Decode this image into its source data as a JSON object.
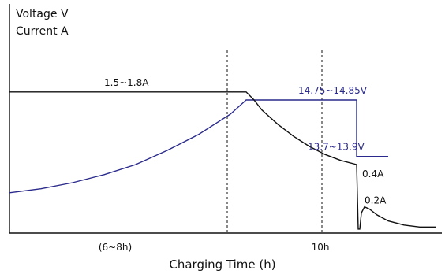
{
  "chart_data": {
    "type": "line",
    "title": "",
    "ylabel": [
      "Voltage  V",
      "Current  A"
    ],
    "xlabel": "Charging Time (h)",
    "x_ticks": [
      "(6~8h)",
      "10h"
    ],
    "grid": false,
    "legend": "none",
    "series": [
      {
        "name": "Voltage",
        "color": "#2a2a8c",
        "points": [
          [
            0,
            0.2
          ],
          [
            20,
            0.22
          ],
          [
            40,
            0.25
          ],
          [
            60,
            0.29
          ],
          [
            80,
            0.34
          ],
          [
            100,
            0.41
          ],
          [
            120,
            0.49
          ],
          [
            140,
            0.59
          ],
          [
            150,
            0.66
          ],
          [
            175,
            0.66
          ],
          [
            200,
            0.66
          ],
          [
            220,
            0.66
          ],
          [
            220,
            0.38
          ],
          [
            240,
            0.38
          ]
        ]
      },
      {
        "name": "Current",
        "color": "#111111",
        "points": [
          [
            0,
            0.7
          ],
          [
            50,
            0.7
          ],
          [
            100,
            0.7
          ],
          [
            150,
            0.7
          ],
          [
            155,
            0.66
          ],
          [
            160,
            0.61
          ],
          [
            170,
            0.54
          ],
          [
            180,
            0.48
          ],
          [
            190,
            0.43
          ],
          [
            200,
            0.39
          ],
          [
            210,
            0.36
          ],
          [
            220,
            0.34
          ],
          [
            221,
            0.02
          ],
          [
            222,
            0.02
          ],
          [
            223,
            0.1
          ],
          [
            225,
            0.13
          ],
          [
            228,
            0.12
          ],
          [
            233,
            0.09
          ],
          [
            240,
            0.06
          ],
          [
            250,
            0.04
          ],
          [
            260,
            0.03
          ],
          [
            270,
            0.03
          ]
        ]
      }
    ],
    "annotations": [
      {
        "text": "14.75~14.85V",
        "series": "Voltage",
        "x": 175,
        "y": 0.66
      },
      {
        "text": "13.7~13.9V",
        "series": "Voltage",
        "x": 240,
        "y": 0.38
      },
      {
        "text": "1.5~1.8A",
        "series": "Current",
        "x": 75,
        "y": 0.7
      },
      {
        "text": "0.4A",
        "series": "Current",
        "x": 220,
        "y": 0.34
      },
      {
        "text": "0.2A",
        "series": "Current",
        "x": 222,
        "y": 0.13
      }
    ],
    "markers": [
      150,
      220
    ],
    "colors": {
      "voltage": "#2a2a8c",
      "current": "#111111"
    }
  }
}
